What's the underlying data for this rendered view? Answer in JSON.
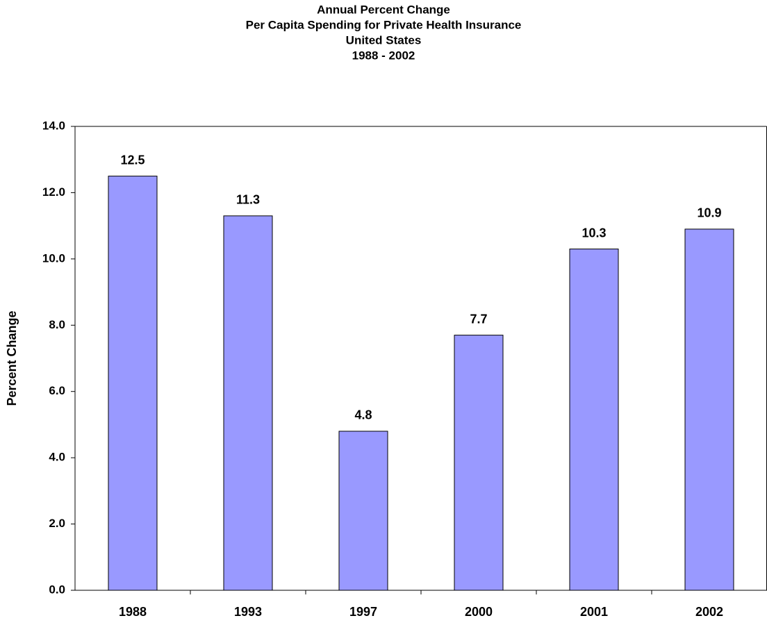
{
  "chart_data": {
    "type": "bar",
    "title": [
      "Annual Percent Change",
      "Per Capita Spending for Private Health Insurance",
      "United States",
      "1988 - 2002"
    ],
    "y_label": "Percent Change",
    "categories": [
      "1988",
      "1993",
      "1997",
      "2000",
      "2001",
      "2002"
    ],
    "values": [
      12.5,
      11.3,
      4.8,
      7.7,
      10.3,
      10.9
    ],
    "color": "#9999ff",
    "ylim": [
      0,
      14
    ],
    "yticks": [
      {
        "value": 0,
        "label": "0.0"
      },
      {
        "value": 2,
        "label": "2.0"
      },
      {
        "value": 4,
        "label": "4.0"
      },
      {
        "value": 6,
        "label": "6.0"
      },
      {
        "value": 8,
        "label": "8.0"
      },
      {
        "value": 10,
        "label": "10.0"
      },
      {
        "value": 12,
        "label": "12.0"
      },
      {
        "value": 14,
        "label": "14.0"
      }
    ],
    "grid": false
  }
}
